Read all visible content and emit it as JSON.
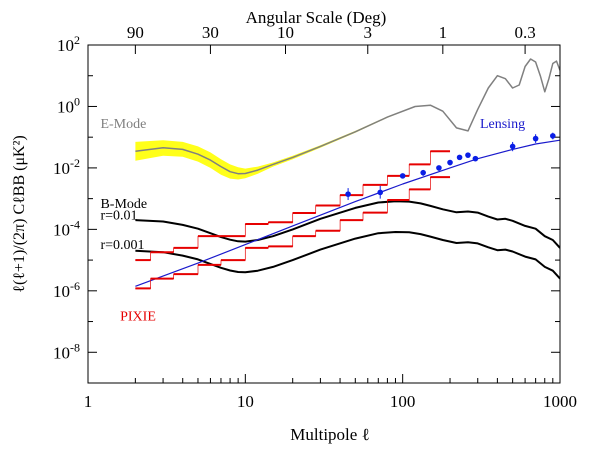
{
  "chart_data": {
    "type": "line",
    "xscale": "log",
    "yscale": "log",
    "xlim": [
      1,
      1000
    ],
    "ylim": [
      1e-09,
      100
    ],
    "xlabel": "Multipole ℓ",
    "ylabel": "ℓ(ℓ+1)/(2π) CℓBB (μK²)",
    "top_axis_label": "Angular Scale (Deg)",
    "grid": false,
    "x_ticks": [
      {
        "value": 1,
        "label": "1"
      },
      {
        "value": 10,
        "label": "10"
      },
      {
        "value": 100,
        "label": "100"
      },
      {
        "value": 1000,
        "label": "1000"
      }
    ],
    "y_ticks": [
      {
        "value": 1e-08,
        "base": "10",
        "exp": "-8"
      },
      {
        "value": 1e-06,
        "base": "10",
        "exp": "-6"
      },
      {
        "value": 0.0001,
        "base": "10",
        "exp": "-4"
      },
      {
        "value": 0.01,
        "base": "10",
        "exp": "-2"
      },
      {
        "value": 1,
        "base": "10",
        "exp": "0"
      },
      {
        "value": 100,
        "base": "10",
        "exp": "2"
      }
    ],
    "top_ticks": [
      {
        "label": "90",
        "ell": 2
      },
      {
        "label": "30",
        "ell": 6
      },
      {
        "label": "10",
        "ell": 18
      },
      {
        "label": "3",
        "ell": 60
      },
      {
        "label": "1",
        "ell": 180
      },
      {
        "label": "0.3",
        "ell": 600
      }
    ],
    "colors": {
      "emode": "#808080",
      "emode_band": "#ffff1a",
      "bmode": "#000000",
      "lensing": "#1a1acc",
      "pixie": "#e60000",
      "lensing_points": "#0a1ee6"
    },
    "series": [
      {
        "key": "emode",
        "x": [
          2,
          3,
          4,
          5,
          6,
          7,
          8,
          9,
          10,
          12,
          15,
          20,
          30,
          50,
          80,
          120,
          150,
          180,
          220,
          260,
          300,
          350,
          400,
          450,
          500,
          550,
          600,
          650,
          700,
          750,
          800,
          850,
          900,
          950,
          1000
        ],
        "y": [
          0.035,
          0.045,
          0.04,
          0.028,
          0.018,
          0.011,
          0.0075,
          0.0065,
          0.0066,
          0.0085,
          0.013,
          0.022,
          0.05,
          0.15,
          0.45,
          1.0,
          1.1,
          0.7,
          0.2,
          0.16,
          0.8,
          4,
          10,
          8,
          4,
          5,
          20,
          35,
          28,
          10,
          3,
          8,
          25,
          30,
          15
        ]
      },
      {
        "key": "bmode_r001",
        "name": "r=0.01",
        "x": [
          2,
          3,
          4,
          5,
          6,
          7,
          8,
          9,
          10,
          12,
          15,
          20,
          30,
          50,
          70,
          90,
          110,
          130,
          150,
          180,
          220,
          260,
          300,
          350,
          400,
          450,
          500,
          600,
          700,
          800,
          900,
          1000
        ],
        "y": [
          0.0002,
          0.00018,
          0.00014,
          0.000105,
          7.5e-05,
          5.6e-05,
          4.6e-05,
          4.1e-05,
          4e-05,
          4.5e-05,
          6e-05,
          0.0001,
          0.00022,
          0.0005,
          0.00075,
          0.00082,
          0.0008,
          0.0007,
          0.00058,
          0.00045,
          0.00036,
          0.00038,
          0.00035,
          0.00026,
          0.00021,
          0.00022,
          0.00019,
          0.00013,
          0.000105,
          6e-05,
          4.5e-05,
          2.5e-05
        ]
      },
      {
        "key": "bmode_r0001",
        "name": "r=0.001",
        "x": [
          2,
          3,
          4,
          5,
          6,
          7,
          8,
          9,
          10,
          12,
          15,
          20,
          30,
          50,
          70,
          90,
          110,
          130,
          150,
          180,
          220,
          260,
          300,
          350,
          400,
          450,
          500,
          600,
          700,
          800,
          900,
          1000
        ],
        "y": [
          2e-05,
          1.8e-05,
          1.4e-05,
          1.05e-05,
          7.5e-06,
          5.6e-06,
          4.6e-06,
          4.1e-06,
          4e-06,
          4.5e-06,
          6e-06,
          1e-05,
          2.2e-05,
          5e-05,
          7.5e-05,
          8.2e-05,
          8e-05,
          7e-05,
          5.8e-05,
          4.5e-05,
          3.6e-05,
          3.8e-05,
          3.5e-05,
          2.6e-05,
          2.1e-05,
          2.2e-05,
          1.9e-05,
          1.3e-05,
          1.05e-05,
          6e-06,
          4.5e-06,
          2.5e-06
        ]
      },
      {
        "key": "lensing",
        "name": "Lensing",
        "x": [
          2,
          5,
          10,
          20,
          50,
          100,
          200,
          300,
          500,
          700,
          1000
        ],
        "y": [
          1.4e-06,
          8e-06,
          3.2e-05,
          0.00013,
          0.0008,
          0.003,
          0.01,
          0.02,
          0.04,
          0.06,
          0.08
        ]
      }
    ],
    "band": {
      "key": "emode_band",
      "x": [
        2,
        3,
        4,
        5,
        6,
        7,
        8,
        9,
        10,
        12,
        15,
        20,
        30,
        50,
        80,
        120,
        150,
        180
      ],
      "lower": [
        0.017,
        0.025,
        0.023,
        0.016,
        0.01,
        0.006,
        0.0045,
        0.0042,
        0.0046,
        0.0065,
        0.011,
        0.019,
        0.045,
        0.14,
        0.43,
        0.97,
        1.07,
        0.68
      ],
      "upper": [
        0.07,
        0.08,
        0.07,
        0.05,
        0.032,
        0.019,
        0.013,
        0.0105,
        0.0095,
        0.011,
        0.015,
        0.025,
        0.055,
        0.16,
        0.47,
        1.03,
        1.13,
        0.72
      ]
    },
    "pixie_bins": [
      {
        "x0": 2,
        "x1": 2.5,
        "y": 1.2e-06
      },
      {
        "x0": 2,
        "x1": 2.5,
        "y": 1e-05
      },
      {
        "x0": 2.5,
        "x1": 3.5,
        "y": 2.5e-06
      },
      {
        "x0": 2.5,
        "x1": 3.5,
        "y": 1.8e-05
      },
      {
        "x0": 3.5,
        "x1": 5,
        "y": 3.5e-06
      },
      {
        "x0": 3.5,
        "x1": 5,
        "y": 2.5e-05
      },
      {
        "x0": 5,
        "x1": 7,
        "y": 7e-06
      },
      {
        "x0": 5,
        "x1": 7,
        "y": 6e-05
      },
      {
        "x0": 7,
        "x1": 10,
        "y": 1e-05
      },
      {
        "x0": 7,
        "x1": 10,
        "y": 6e-05
      },
      {
        "x0": 10,
        "x1": 14,
        "y": 2.5e-05
      },
      {
        "x0": 10,
        "x1": 14,
        "y": 0.00015
      },
      {
        "x0": 14,
        "x1": 20,
        "y": 2.8e-05
      },
      {
        "x0": 14,
        "x1": 20,
        "y": 0.00017
      },
      {
        "x0": 20,
        "x1": 28,
        "y": 6e-05
      },
      {
        "x0": 20,
        "x1": 28,
        "y": 0.00034
      },
      {
        "x0": 28,
        "x1": 40,
        "y": 9e-05
      },
      {
        "x0": 28,
        "x1": 40,
        "y": 0.0006
      },
      {
        "x0": 40,
        "x1": 56,
        "y": 0.0002
      },
      {
        "x0": 40,
        "x1": 56,
        "y": 0.0013
      },
      {
        "x0": 56,
        "x1": 80,
        "y": 0.00035
      },
      {
        "x0": 56,
        "x1": 80,
        "y": 0.0028
      },
      {
        "x0": 80,
        "x1": 110,
        "y": 0.0009
      },
      {
        "x0": 80,
        "x1": 110,
        "y": 0.0055
      },
      {
        "x0": 110,
        "x1": 150,
        "y": 0.002
      },
      {
        "x0": 110,
        "x1": 150,
        "y": 0.013
      },
      {
        "x0": 150,
        "x1": 200,
        "y": 0.005
      },
      {
        "x0": 150,
        "x1": 200,
        "y": 0.035
      }
    ],
    "lensing_points": [
      {
        "x": 45,
        "y": 0.0014,
        "lo": 0.0009,
        "hi": 0.0022
      },
      {
        "x": 72,
        "y": 0.0016,
        "lo": 0.001,
        "hi": 0.0026
      },
      {
        "x": 100,
        "y": 0.0055,
        "lo": 0.0045,
        "hi": 0.0065
      },
      {
        "x": 135,
        "y": 0.007,
        "lo": 0.0055,
        "hi": 0.0085
      },
      {
        "x": 170,
        "y": 0.01,
        "lo": 0.008,
        "hi": 0.012
      },
      {
        "x": 200,
        "y": 0.015,
        "lo": 0.012,
        "hi": 0.018
      },
      {
        "x": 230,
        "y": 0.022,
        "lo": 0.019,
        "hi": 0.025
      },
      {
        "x": 260,
        "y": 0.026,
        "lo": 0.023,
        "hi": 0.029
      },
      {
        "x": 290,
        "y": 0.02,
        "lo": 0.017,
        "hi": 0.023
      },
      {
        "x": 500,
        "y": 0.05,
        "lo": 0.035,
        "hi": 0.07
      },
      {
        "x": 700,
        "y": 0.09,
        "lo": 0.065,
        "hi": 0.125
      },
      {
        "x": 900,
        "y": 0.11,
        "lo": 0.085,
        "hi": 0.14
      }
    ],
    "annotations": [
      {
        "key": "emode",
        "text": "E-Mode",
        "x": 1.2,
        "y": 0.2,
        "color_key": "emode"
      },
      {
        "key": "bmode",
        "text": "B-Mode",
        "x": 1.2,
        "y": 0.0005,
        "color_key": "bmode"
      },
      {
        "key": "r001",
        "text": "r=0.01",
        "x": 1.2,
        "y": 0.00021,
        "color_key": "bmode"
      },
      {
        "key": "r0001",
        "text": "r=0.001",
        "x": 1.2,
        "y": 2.3e-05,
        "color_key": "bmode"
      },
      {
        "key": "lensing",
        "text": "Lensing",
        "x": 310,
        "y": 0.2,
        "color_key": "lensing"
      },
      {
        "key": "pixie",
        "text": "PIXIE",
        "x": 1.6,
        "y": 1.1e-07,
        "color_key": "pixie"
      }
    ]
  }
}
